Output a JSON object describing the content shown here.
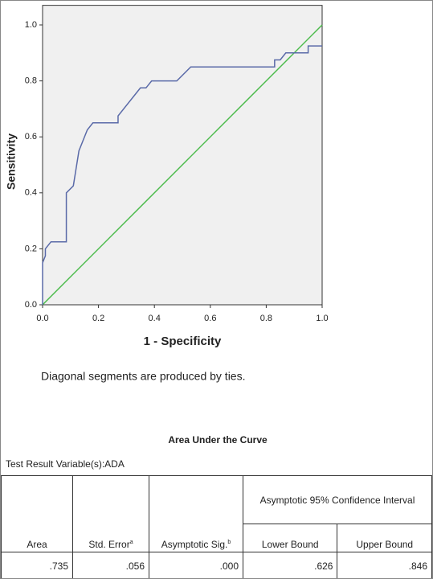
{
  "chart_data": {
    "type": "line",
    "x_label": "1 - Specificity",
    "y_label": "Sensitivity",
    "xlim": [
      0,
      1
    ],
    "ylim": [
      0,
      1.07
    ],
    "xticks": [
      {
        "value": 0,
        "label": "0.0"
      },
      {
        "value": 0.2,
        "label": "0.2"
      },
      {
        "value": 0.4,
        "label": "0.4"
      },
      {
        "value": 0.6,
        "label": "0.6"
      },
      {
        "value": 0.8,
        "label": "0.8"
      },
      {
        "value": 1,
        "label": "1.0"
      }
    ],
    "yticks": [
      {
        "value": 0,
        "label": "0.0"
      },
      {
        "value": 0.2,
        "label": "0.2"
      },
      {
        "value": 0.4,
        "label": "0.4"
      },
      {
        "value": 0.6,
        "label": "0.6"
      },
      {
        "value": 0.8,
        "label": "0.8"
      },
      {
        "value": 1,
        "label": "1.0"
      }
    ],
    "background": "#f0f0f0",
    "series": [
      {
        "color": "#5a6aa8",
        "x": [
          0,
          0,
          0.01,
          0.01,
          0.03,
          0.085,
          0.085,
          0.11,
          0.13,
          0.16,
          0.18,
          0.27,
          0.27,
          0.33,
          0.35,
          0.37,
          0.39,
          0.48,
          0.53,
          0.83,
          0.83,
          0.85,
          0.87,
          0.95,
          0.95,
          1
        ],
        "values": [
          0,
          0.15,
          0.175,
          0.2,
          0.225,
          0.225,
          0.4,
          0.425,
          0.55,
          0.625,
          0.65,
          0.65,
          0.675,
          0.75,
          0.775,
          0.775,
          0.8,
          0.8,
          0.85,
          0.85,
          0.875,
          0.875,
          0.9,
          0.9,
          0.925,
          0.925
        ]
      }
    ],
    "reference_line": {
      "color": "#4cbb4c",
      "x": [
        0,
        1
      ],
      "values": [
        0,
        1
      ]
    }
  },
  "note": "Diagonal segments are produced by ties.",
  "table": {
    "title": "Area Under the Curve",
    "subtitle": "Test Result Variable(s):ADA",
    "group_header": "Asymptotic 95% Confidence Interval",
    "headers": [
      "Area",
      "Std. Error",
      "Asymptotic Sig.",
      "Lower Bound",
      "Upper Bound"
    ],
    "header_notes": [
      null,
      "a",
      "b",
      null,
      null
    ],
    "rows": [
      [
        ".735",
        ".056",
        ".000",
        ".626",
        ".846"
      ]
    ]
  }
}
